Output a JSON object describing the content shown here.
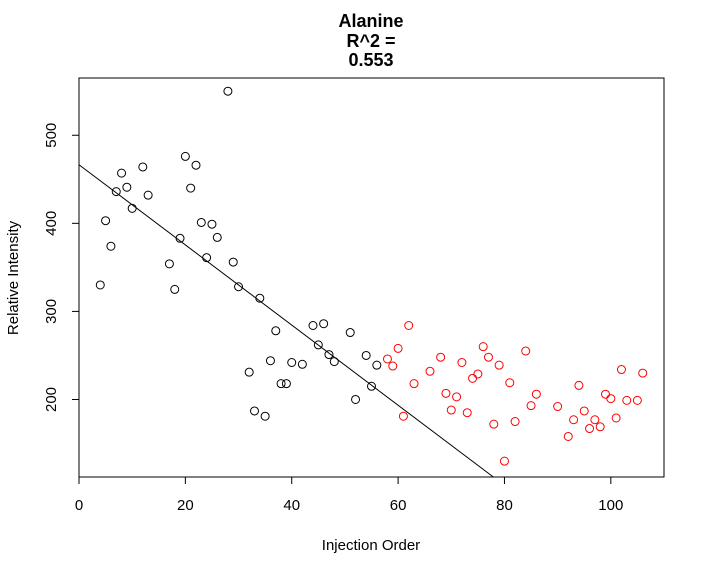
{
  "chart_data": {
    "type": "scatter",
    "title_lines": [
      "Alanine",
      "R^2 =",
      "0.553"
    ],
    "xlabel": "Injection Order",
    "ylabel": "Relative Intensity",
    "xlim": [
      0,
      110
    ],
    "ylim": [
      112,
      565
    ],
    "x_ticks": [
      0,
      20,
      40,
      60,
      80,
      100
    ],
    "x_tick_labels": [
      "0",
      "20",
      "40",
      "60",
      "80",
      "100"
    ],
    "y_ticks": [
      200,
      300,
      400,
      500
    ],
    "y_tick_labels": [
      "200",
      "300",
      "400",
      "500"
    ],
    "grid": false,
    "legend": "none",
    "colors": {
      "series1": "#000000",
      "series2": "#ff0000",
      "fit": "#000000"
    },
    "series": [
      {
        "color": "#000000",
        "x": [
          4,
          5,
          6,
          7,
          8,
          9,
          10,
          12,
          13,
          17,
          18,
          19,
          20,
          21,
          22,
          23,
          24,
          25,
          26,
          28,
          29,
          30,
          32,
          33,
          34,
          35,
          36,
          37,
          38,
          39,
          40,
          42,
          44,
          45,
          46,
          47,
          48,
          51,
          52,
          54,
          55,
          56
        ],
        "y": [
          330,
          403,
          374,
          436,
          457,
          441,
          417,
          464,
          432,
          354,
          325,
          383,
          476,
          440,
          466,
          401,
          361,
          399,
          384,
          550,
          356,
          328,
          231,
          187,
          315,
          181,
          244,
          278,
          218,
          218,
          242,
          240,
          284,
          262,
          286,
          251,
          243,
          276,
          200,
          250,
          215,
          239
        ]
      },
      {
        "color": "#ff0000",
        "x": [
          58,
          59,
          60,
          61,
          62,
          63,
          66,
          68,
          69,
          70,
          71,
          72,
          73,
          74,
          75,
          76,
          77,
          78,
          79,
          80,
          81,
          82,
          84,
          85,
          86,
          90,
          92,
          93,
          94,
          95,
          96,
          97,
          98,
          99,
          100,
          101,
          102,
          103,
          105,
          106
        ],
        "y": [
          246,
          238,
          258,
          181,
          284,
          218,
          232,
          248,
          207,
          188,
          203,
          242,
          185,
          224,
          229,
          260,
          248,
          172,
          239,
          130,
          219,
          175,
          255,
          193,
          206,
          192,
          158,
          177,
          216,
          187,
          167,
          177,
          169,
          206,
          201,
          179,
          234,
          199,
          199,
          230
        ]
      }
    ],
    "fit_line": {
      "intercept": 466.5,
      "slope": -4.55
    }
  }
}
